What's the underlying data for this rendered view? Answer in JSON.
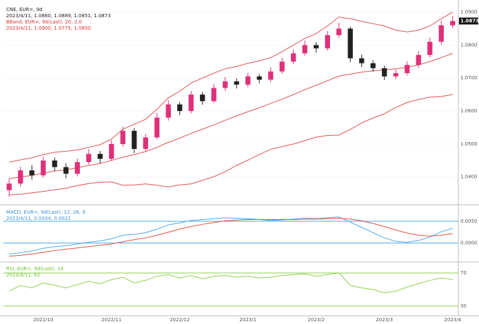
{
  "chart_data": [
    {
      "type": "candlestick",
      "texts": [
        {
          "text": "CNE, EUR=, 9d",
          "color": "#222222"
        },
        {
          "text": "2023/4/11, 1.0860, 1.0889, 1.0851, 1.0873",
          "color": "#222222"
        },
        {
          "text": "BBand, EUR=, 9d(Last), 20, 2.0",
          "color": "#e03030"
        },
        {
          "text": "2023/4/11, 1.0900, 1.0775, 1.0650",
          "color": "#e03030"
        }
      ],
      "categories": [
        null,
        null,
        null,
        "2022/10",
        null,
        null,
        null,
        null,
        null,
        "2022/11",
        null,
        null,
        null,
        null,
        null,
        "2022/12",
        null,
        null,
        null,
        null,
        null,
        "2023/1",
        null,
        null,
        null,
        null,
        null,
        "2023/2",
        null,
        null,
        null,
        null,
        null,
        "2023/3",
        null,
        null,
        null,
        null,
        null,
        "2023/4"
      ],
      "open": [
        1.036,
        1.038,
        1.042,
        1.0405,
        1.045,
        1.043,
        1.041,
        1.0445,
        1.047,
        1.0455,
        1.05,
        1.054,
        1.0485,
        1.052,
        1.058,
        1.062,
        1.06,
        1.065,
        1.063,
        1.067,
        1.069,
        1.068,
        1.0705,
        1.0695,
        1.072,
        1.075,
        1.0775,
        1.08,
        1.079,
        1.083,
        1.085,
        1.076,
        1.0745,
        1.073,
        1.0705,
        1.0715,
        1.074,
        1.077,
        1.081,
        1.086
      ],
      "high": [
        1.0395,
        1.0432,
        1.0436,
        1.0462,
        1.0459,
        1.0441,
        1.0456,
        1.0485,
        1.0479,
        1.0512,
        1.0553,
        1.0548,
        1.0531,
        1.0594,
        1.0633,
        1.0628,
        1.0661,
        1.0658,
        1.0682,
        1.0703,
        1.0699,
        1.0716,
        1.0712,
        1.0733,
        1.0762,
        1.0787,
        1.0814,
        1.0809,
        1.0843,
        1.0868,
        1.0856,
        1.0771,
        1.0754,
        1.0737,
        1.0726,
        1.0751,
        1.0782,
        1.0823,
        1.0874,
        1.0889
      ],
      "low": [
        1.034,
        1.0371,
        1.0392,
        1.0398,
        1.0418,
        1.0396,
        1.0402,
        1.0438,
        1.0441,
        1.0449,
        1.0492,
        1.0472,
        1.0478,
        1.0514,
        1.0571,
        1.0588,
        1.0593,
        1.0619,
        1.0624,
        1.0661,
        1.0668,
        1.0672,
        1.0684,
        1.0688,
        1.0713,
        1.0742,
        1.0768,
        1.0777,
        1.0783,
        1.0822,
        1.0748,
        1.0733,
        1.0719,
        1.0694,
        1.0697,
        1.0708,
        1.0731,
        1.0762,
        1.0801,
        1.0851
      ],
      "close": [
        1.038,
        1.042,
        1.0405,
        1.045,
        1.043,
        1.041,
        1.0445,
        1.047,
        1.0455,
        1.05,
        1.054,
        1.0485,
        1.052,
        1.058,
        1.062,
        1.06,
        1.065,
        1.063,
        1.067,
        1.069,
        1.068,
        1.0705,
        1.0695,
        1.072,
        1.075,
        1.0775,
        1.08,
        1.079,
        1.083,
        1.085,
        1.076,
        1.0745,
        1.073,
        1.0705,
        1.0715,
        1.074,
        1.077,
        1.081,
        1.086,
        1.0873
      ],
      "up_color": "#e0307a",
      "down_color": "#222222",
      "series": [
        {
          "color": "#e05050",
          "values": [
            1.0445,
            1.0452,
            1.0458,
            1.0468,
            1.0475,
            1.0478,
            1.0482,
            1.049,
            1.0498,
            1.0515,
            1.0545,
            1.056,
            1.0575,
            1.0605,
            1.064,
            1.066,
            1.0685,
            1.07,
            1.0715,
            1.0728,
            1.0735,
            1.0745,
            1.0752,
            1.0762,
            1.078,
            1.08,
            1.082,
            1.0835,
            1.0858,
            1.0885,
            1.088,
            1.0872,
            1.0865,
            1.0858,
            1.0845,
            1.084,
            1.0845,
            1.0858,
            1.088,
            1.09
          ]
        },
        {
          "color": "#e05050",
          "values": [
            1.0395,
            1.04,
            1.0405,
            1.0412,
            1.0418,
            1.0422,
            1.0428,
            1.0435,
            1.0441,
            1.045,
            1.046,
            1.0468,
            1.0477,
            1.049,
            1.0505,
            1.0518,
            1.0532,
            1.0545,
            1.0558,
            1.0572,
            1.0585,
            1.0598,
            1.061,
            1.0623,
            1.0636,
            1.065,
            1.0665,
            1.0678,
            1.0692,
            1.0706,
            1.0712,
            1.0718,
            1.0722,
            1.0725,
            1.0728,
            1.0733,
            1.074,
            1.075,
            1.0762,
            1.0775
          ]
        },
        {
          "color": "#e05050",
          "values": [
            1.0345,
            1.0348,
            1.0352,
            1.0356,
            1.0361,
            1.0366,
            1.0374,
            1.038,
            1.0384,
            1.0385,
            1.0375,
            1.0376,
            1.0379,
            1.0375,
            1.037,
            1.0376,
            1.0379,
            1.039,
            1.0401,
            1.0416,
            1.0435,
            1.0451,
            1.0468,
            1.0484,
            1.0492,
            1.05,
            1.051,
            1.0521,
            1.0526,
            1.0527,
            1.0544,
            1.0564,
            1.0579,
            1.0592,
            1.0611,
            1.0626,
            1.0635,
            1.0642,
            1.0644,
            1.065
          ]
        }
      ],
      "ylim": [
        1.032,
        1.092
      ],
      "yticks": [
        {
          "value": 1.04,
          "label": "1.0400"
        },
        {
          "value": 1.05,
          "label": "1.0500"
        },
        {
          "value": 1.06,
          "label": "1.0600"
        },
        {
          "value": 1.07,
          "label": "1.0700"
        },
        {
          "value": 1.08,
          "label": "1.0800"
        },
        {
          "value": 1.09,
          "label": "1.0900"
        }
      ],
      "grid": true,
      "grid_color": "#dddddd"
    },
    {
      "type": "line",
      "texts": [
        {
          "text": "MACD, EUR=, 9d(Last), 12, 26, 9",
          "color": "#3a8fd8"
        },
        {
          "text": "2023/4/11, 0.0034, 0.0022",
          "color": "#3a8fd8"
        }
      ],
      "series": [
        {
          "color": "#4aa8e8",
          "values": [
            -0.0025,
            -0.0022,
            -0.0018,
            -0.0012,
            -0.0008,
            -0.0006,
            -0.0002,
            0.0002,
            0.0005,
            0.001,
            0.0018,
            0.002,
            0.0024,
            0.0032,
            0.0042,
            0.0046,
            0.0052,
            0.0054,
            0.0056,
            0.0058,
            0.0057,
            0.0056,
            0.0054,
            0.0052,
            0.0053,
            0.0055,
            0.0057,
            0.0056,
            0.0058,
            0.006,
            0.0048,
            0.0036,
            0.0024,
            0.0012,
            0.0004,
            0.0002,
            0.0006,
            0.0014,
            0.0026,
            0.0034
          ]
        },
        {
          "color": "#e05040",
          "values": [
            -0.003,
            -0.0028,
            -0.0025,
            -0.0021,
            -0.0017,
            -0.0014,
            -0.0011,
            -0.0008,
            -0.0005,
            -0.0002,
            0.0003,
            0.0008,
            0.0012,
            0.0018,
            0.0025,
            0.0032,
            0.0038,
            0.0043,
            0.0047,
            0.0051,
            0.0053,
            0.0054,
            0.0054,
            0.0054,
            0.0054,
            0.0054,
            0.0055,
            0.0055,
            0.0056,
            0.0057,
            0.0055,
            0.0051,
            0.0045,
            0.0038,
            0.003,
            0.0023,
            0.0018,
            0.0016,
            0.0018,
            0.0022
          ]
        }
      ],
      "ylim": [
        -0.004,
        0.008
      ],
      "yticks": [
        {
          "value": 0,
          "label": "0.0000"
        },
        {
          "value": 0.005,
          "label": "0.0050"
        }
      ],
      "grid": true,
      "grid_color": "#4aa8e8"
    },
    {
      "type": "line",
      "texts": [
        {
          "text": "RSI, EUR=, 9d(Last), 14",
          "color": "#6fbf2a"
        },
        {
          "text": "2023/4/11, 62",
          "color": "#6fbf2a"
        }
      ],
      "series": [
        {
          "color": "#8bd14a",
          "values": [
            48,
            55,
            52,
            58,
            55,
            52,
            56,
            60,
            57,
            62,
            65,
            58,
            61,
            66,
            68,
            64,
            67,
            63,
            66,
            67,
            65,
            66,
            64,
            65,
            67,
            68,
            69,
            66,
            68,
            70,
            55,
            52,
            50,
            46,
            48,
            53,
            57,
            61,
            64,
            62
          ]
        }
      ],
      "ylim": [
        20,
        80
      ],
      "yticks": [
        30,
        70
      ],
      "grid": true,
      "grid_color": "#8bd14a"
    }
  ]
}
